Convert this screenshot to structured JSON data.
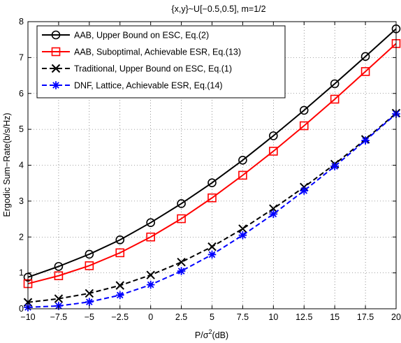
{
  "chart_data": {
    "type": "line",
    "title": "{x,y}~U[−0.5,0.5], m=1/2",
    "xlabel_main": "P/σ",
    "xlabel_sup": "2",
    "xlabel_tail": "(dB)",
    "ylabel": "Ergodic Sum−Rate(b/s/Hz)",
    "x": [
      -10,
      -7.5,
      -5,
      -2.5,
      0,
      2.5,
      5,
      7.5,
      10,
      12.5,
      15,
      17.5,
      20
    ],
    "x_tick_labels": [
      "−10",
      "−7.5",
      "−5",
      "−2.5",
      "0",
      "2.5",
      "5",
      "7.5",
      "10",
      "12.5",
      "15",
      "17.5",
      "20"
    ],
    "xlim": [
      -10,
      20
    ],
    "ylim": [
      0,
      8
    ],
    "y_ticks": [
      0,
      1,
      2,
      3,
      4,
      5,
      6,
      7,
      8
    ],
    "y_tick_labels": [
      "0",
      "1",
      "2",
      "3",
      "4",
      "5",
      "6",
      "7",
      "8"
    ],
    "grid": true,
    "legend_position": "top-left",
    "series": [
      {
        "name": "AAB, Upper Bound on ESC, Eq.(2)",
        "color": "#000000",
        "line_style": "solid",
        "marker": "circle",
        "values": [
          0.88,
          1.18,
          1.52,
          1.92,
          2.4,
          2.93,
          3.51,
          4.14,
          4.82,
          5.53,
          6.27,
          7.03,
          7.8
        ]
      },
      {
        "name": "AAB, Suboptimal, Achievable ESR, Eq.(13)",
        "color": "#ff0000",
        "line_style": "solid",
        "marker": "square",
        "values": [
          0.7,
          0.92,
          1.2,
          1.56,
          2.0,
          2.51,
          3.09,
          3.72,
          4.39,
          5.1,
          5.84,
          6.61,
          7.39
        ]
      },
      {
        "name": "Traditional, Upper Bound on ESC, Eq.(1)",
        "color": "#000000",
        "line_style": "dashed",
        "marker": "x",
        "values": [
          0.18,
          0.28,
          0.43,
          0.65,
          0.94,
          1.3,
          1.73,
          2.23,
          2.79,
          3.39,
          4.03,
          4.72,
          5.45
        ]
      },
      {
        "name": "DNF, Lattice, Achievable ESR, Eq.(14)",
        "color": "#0000ff",
        "line_style": "dashed",
        "marker": "asterisk",
        "values": [
          0.04,
          0.08,
          0.19,
          0.38,
          0.67,
          1.05,
          1.51,
          2.05,
          2.64,
          3.29,
          3.97,
          4.69,
          5.43
        ]
      }
    ]
  }
}
